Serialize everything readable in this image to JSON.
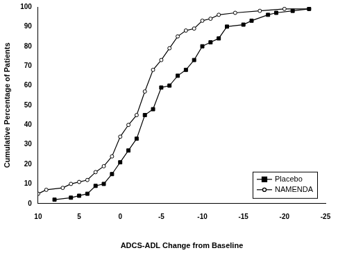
{
  "chart_data": {
    "type": "line",
    "x_label": "ADCS-ADL Change from Baseline",
    "y_label": "Cumulative Percentage of Patients",
    "series": [
      {
        "name": "Placebo",
        "color": "#000000",
        "marker": "square",
        "line_style": "solid",
        "x": [
          8,
          6,
          5,
          4,
          3,
          2,
          1,
          0,
          -1,
          -2,
          -3,
          -4,
          -5,
          -6,
          -7,
          -8,
          -9,
          -10,
          -11,
          -12,
          -13,
          -15,
          -16,
          -18,
          -19,
          -21,
          -23
        ],
        "values": [
          2,
          3,
          4,
          5,
          9,
          10,
          15,
          21,
          27,
          33,
          45,
          48,
          59,
          60,
          65,
          68,
          73,
          80,
          82,
          84,
          90,
          91,
          93,
          96,
          97,
          98,
          99
        ]
      },
      {
        "name": "NAMENDA",
        "color": "#000000",
        "marker": "circle",
        "line_style": "solid",
        "x": [
          10,
          9,
          7,
          6,
          5,
          4,
          3,
          2,
          1,
          0,
          -1,
          -2,
          -3,
          -4,
          -5,
          -6,
          -7,
          -8,
          -9,
          -10,
          -11,
          -12,
          -14,
          -17,
          -20,
          -23
        ],
        "values": [
          5,
          7,
          8,
          10,
          11,
          12,
          16,
          19,
          24,
          34,
          40,
          45,
          57,
          68,
          73,
          79,
          85,
          88,
          89,
          93,
          94,
          96,
          97,
          98,
          99,
          99
        ]
      }
    ],
    "xlim": [
      10,
      -25
    ],
    "xticks": [
      10,
      5,
      0,
      -5,
      -10,
      -15,
      -20,
      -25
    ],
    "ylim": [
      0,
      100
    ],
    "yticks": [
      0,
      10,
      20,
      30,
      40,
      50,
      60,
      70,
      80,
      90,
      100
    ],
    "grid": false,
    "legend": "lower right"
  }
}
